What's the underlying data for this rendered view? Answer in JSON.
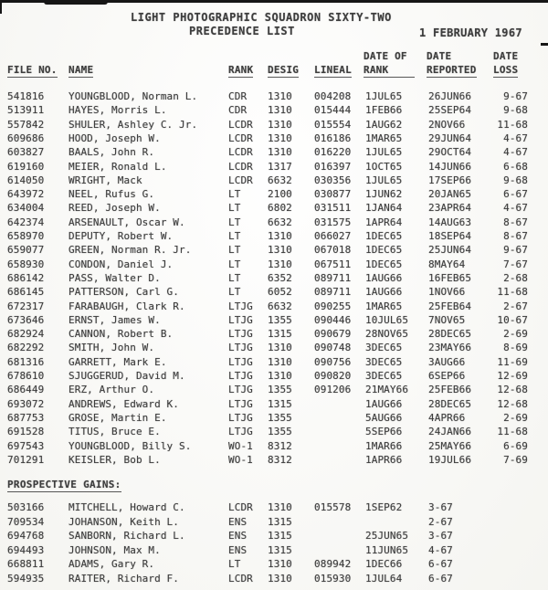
{
  "document": {
    "title_line1": "LIGHT PHOTOGRAPHIC SQUADRON SIXTY-TWO",
    "title_line2": "PRECEDENCE LIST",
    "date": "1 FEBRUARY 1967"
  },
  "table_headers": {
    "file_no": "FILE NO.",
    "name": "NAME",
    "rank": "RANK",
    "desig": "DESIG",
    "lineal": "LINEAL",
    "date_of_rank_line1": "DATE OF",
    "date_of_rank_line2": "RANK",
    "date_reported_line1": "DATE",
    "date_reported_line2": "REPORTED",
    "date_loss_line1": "DATE",
    "date_loss_line2": "LOSS"
  },
  "roster": {
    "rows": [
      {
        "file": "541816",
        "name": "YOUNGBLOOD, Norman L.",
        "rank": "CDR",
        "desig": "1310",
        "lineal": "004208",
        "dor": "1JUL65",
        "rep": "26JUN66",
        "loss": "9-67"
      },
      {
        "file": "513911",
        "name": "HAYES, Morris L.",
        "rank": "CDR",
        "desig": "1310",
        "lineal": "015444",
        "dor": "1FEB66",
        "rep": "25SEP64",
        "loss": "9-68"
      },
      {
        "file": "557842",
        "name": "SHULER, Ashley C. Jr.",
        "rank": "LCDR",
        "desig": "1310",
        "lineal": "015554",
        "dor": "1AUG62",
        "rep": "2NOV66",
        "loss": "11-68"
      },
      {
        "file": "609686",
        "name": "HOOD, Joseph W.",
        "rank": "LCDR",
        "desig": "1310",
        "lineal": "016186",
        "dor": "1MAR65",
        "rep": "29JUN64",
        "loss": "4-67"
      },
      {
        "file": "603827",
        "name": "BAALS, John R.",
        "rank": "LCDR",
        "desig": "1310",
        "lineal": "016220",
        "dor": "1JUL65",
        "rep": "29OCT64",
        "loss": "4-67"
      },
      {
        "file": "619160",
        "name": "MEIER, Ronald L.",
        "rank": "LCDR",
        "desig": "1317",
        "lineal": "016397",
        "dor": "1OCT65",
        "rep": "14JUN66",
        "loss": "6-68"
      },
      {
        "file": "614050",
        "name": "WRIGHT, Mack",
        "rank": "LCDR",
        "desig": "6632",
        "lineal": "030356",
        "dor": "1JUL65",
        "rep": "17SEP66",
        "loss": "9-68"
      },
      {
        "file": "643972",
        "name": "NEEL, Rufus G.",
        "rank": "LT",
        "desig": "2100",
        "lineal": "030877",
        "dor": "1JUN62",
        "rep": "20JAN65",
        "loss": "6-67"
      },
      {
        "file": "634004",
        "name": "REED, Joseph W.",
        "rank": "LT",
        "desig": "6802",
        "lineal": "031511",
        "dor": "1JAN64",
        "rep": "23APR64",
        "loss": "4-67"
      },
      {
        "file": "642374",
        "name": "ARSENAULT, Oscar W.",
        "rank": "LT",
        "desig": "6632",
        "lineal": "031575",
        "dor": "1APR64",
        "rep": "14AUG63",
        "loss": "8-67"
      },
      {
        "file": "658970",
        "name": "DEPUTY, Robert W.",
        "rank": "LT",
        "desig": "1310",
        "lineal": "066027",
        "dor": "1DEC65",
        "rep": "18SEP64",
        "loss": "8-67"
      },
      {
        "file": "659077",
        "name": "GREEN, Norman R. Jr.",
        "rank": "LT",
        "desig": "1310",
        "lineal": "067018",
        "dor": "1DEC65",
        "rep": "25JUN64",
        "loss": "9-67"
      },
      {
        "file": "658930",
        "name": "CONDON, Daniel J.",
        "rank": "LT",
        "desig": "1310",
        "lineal": "067511",
        "dor": "1DEC65",
        "rep": "8MAY64",
        "loss": "7-67"
      },
      {
        "file": "686142",
        "name": "PASS, Walter D.",
        "rank": "LT",
        "desig": "6352",
        "lineal": "089711",
        "dor": "1AUG66",
        "rep": "16FEB65",
        "loss": "2-68"
      },
      {
        "file": "686145",
        "name": "PATTERSON, Carl G.",
        "rank": "LT",
        "desig": "6052",
        "lineal": "089711",
        "dor": "1AUG66",
        "rep": "1NOV66",
        "loss": "11-68"
      },
      {
        "file": "672317",
        "name": "FARABAUGH, Clark R.",
        "rank": "LTJG",
        "desig": "6632",
        "lineal": "090255",
        "dor": "1MAR65",
        "rep": "25FEB64",
        "loss": "2-67"
      },
      {
        "file": "673646",
        "name": "ERNST, James W.",
        "rank": "LTJG",
        "desig": "1355",
        "lineal": "090446",
        "dor": "10JUL65",
        "rep": "7NOV65",
        "loss": "10-67"
      },
      {
        "file": "682924",
        "name": "CANNON, Robert B.",
        "rank": "LTJG",
        "desig": "1315",
        "lineal": "090679",
        "dor": "28NOV65",
        "rep": "28DEC65",
        "loss": "2-69"
      },
      {
        "file": "682292",
        "name": "SMITH, John W.",
        "rank": "LTJG",
        "desig": "1310",
        "lineal": "090748",
        "dor": "3DEC65",
        "rep": "23MAY66",
        "loss": "8-69"
      },
      {
        "file": "681316",
        "name": "GARRETT, Mark E.",
        "rank": "LTJG",
        "desig": "1310",
        "lineal": "090756",
        "dor": "3DEC65",
        "rep": "3AUG66",
        "loss": "11-69"
      },
      {
        "file": "678610",
        "name": "SJUGGERUD, David M.",
        "rank": "LTJG",
        "desig": "1310",
        "lineal": "090820",
        "dor": "3DEC65",
        "rep": "6SEP66",
        "loss": "12-69"
      },
      {
        "file": "686449",
        "name": "ERZ, Arthur O.",
        "rank": "LTJG",
        "desig": "1355",
        "lineal": "091206",
        "dor": "21MAY66",
        "rep": "25FEB66",
        "loss": "12-68"
      },
      {
        "file": "693072",
        "name": "ANDREWS, Edward K.",
        "rank": "LTJG",
        "desig": "1315",
        "lineal": "",
        "dor": "1AUG66",
        "rep": "28DEC65",
        "loss": "12-68"
      },
      {
        "file": "687753",
        "name": "GROSE, Martin E.",
        "rank": "LTJG",
        "desig": "1355",
        "lineal": "",
        "dor": "5AUG66",
        "rep": "4APR66",
        "loss": "2-69"
      },
      {
        "file": "691528",
        "name": "TITUS, Bruce E.",
        "rank": "LTJG",
        "desig": "1355",
        "lineal": "",
        "dor": "5SEP66",
        "rep": "24JAN66",
        "loss": "11-68"
      },
      {
        "file": "697543",
        "name": "YOUNGBLOOD, Billy S.",
        "rank": "WO-1",
        "desig": "8312",
        "lineal": "",
        "dor": "1MAR66",
        "rep": "25MAY66",
        "loss": "6-69"
      },
      {
        "file": "701291",
        "name": "KEISLER, Bob L.",
        "rank": "WO-1",
        "desig": "8312",
        "lineal": "",
        "dor": "1APR66",
        "rep": "19JUL66",
        "loss": "7-69"
      }
    ]
  },
  "prospective_gains": {
    "heading": "PROSPECTIVE GAINS:",
    "rows": [
      {
        "file": "503166",
        "name": "MITCHELL, Howard C.",
        "rank": "LCDR",
        "desig": "1310",
        "lineal": "015578",
        "dor": "1SEP62",
        "rep": "3-67",
        "loss": ""
      },
      {
        "file": "709534",
        "name": "JOHANSON, Keith L.",
        "rank": "ENS",
        "desig": "1315",
        "lineal": "",
        "dor": "",
        "rep": "2-67",
        "loss": ""
      },
      {
        "file": "694768",
        "name": "SANBORN, Richard L.",
        "rank": "ENS",
        "desig": "1315",
        "lineal": "",
        "dor": "25JUN65",
        "rep": "3-67",
        "loss": ""
      },
      {
        "file": "694493",
        "name": "JOHNSON, Max M.",
        "rank": "ENS",
        "desig": "1315",
        "lineal": "",
        "dor": "11JUN65",
        "rep": "4-67",
        "loss": ""
      },
      {
        "file": "668811",
        "name": "ADAMS, Gary R.",
        "rank": "LT",
        "desig": "1310",
        "lineal": "089942",
        "dor": "1DEC66",
        "rep": "6-67",
        "loss": ""
      },
      {
        "file": "594935",
        "name": "RAITER, Richard F.",
        "rank": "LCDR",
        "desig": "1310",
        "lineal": "015930",
        "dor": "1JUL64",
        "rep": "6-67",
        "loss": ""
      }
    ]
  },
  "colors": {
    "paper": "#fbfaf7",
    "ink": "#3d3d3d"
  }
}
